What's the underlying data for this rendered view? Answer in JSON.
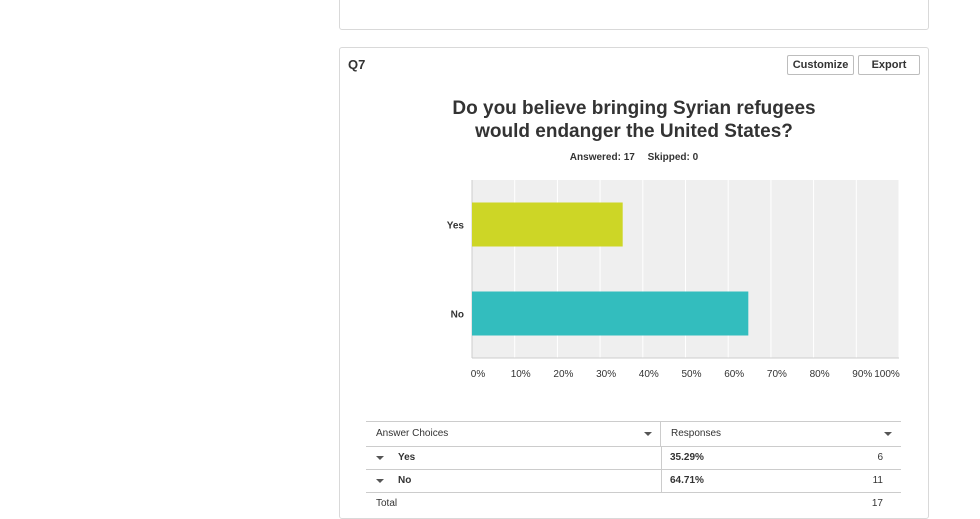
{
  "question": {
    "label": "Q7",
    "title_line1": "Do you believe bringing Syrian refugees",
    "title_line2": "would endanger the United States?",
    "answered": "Answered: 17",
    "skipped": "Skipped: 0"
  },
  "toolbar": {
    "customize_label": "Customize",
    "export_label": "Export"
  },
  "chart_data": {
    "type": "bar",
    "orientation": "horizontal",
    "categories": [
      "Yes",
      "No"
    ],
    "values": [
      35.29,
      64.71
    ],
    "colors": [
      "#cdd626",
      "#33bdbe"
    ],
    "xlim": [
      0,
      100
    ],
    "x_ticks": [
      "0%",
      "10%",
      "20%",
      "30%",
      "40%",
      "50%",
      "60%",
      "70%",
      "80%",
      "90%",
      "100%"
    ],
    "grid": true
  },
  "table": {
    "col_choices": "Answer Choices",
    "col_responses": "Responses",
    "rows": [
      {
        "label": "Yes",
        "percent": "35.29%",
        "count": "6"
      },
      {
        "label": "No",
        "percent": "64.71%",
        "count": "11"
      }
    ],
    "total_label": "Total",
    "total_count": "17"
  }
}
